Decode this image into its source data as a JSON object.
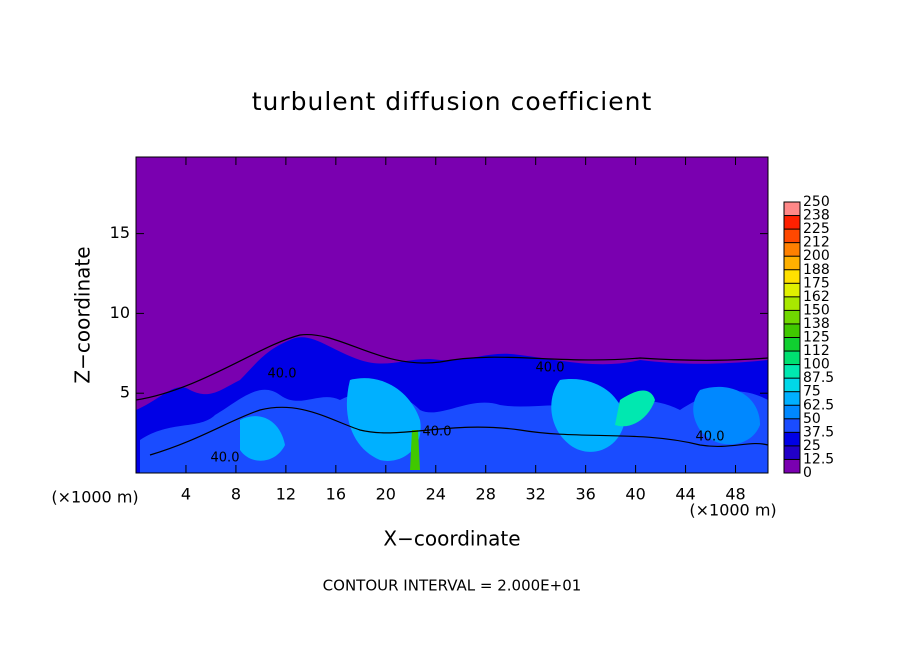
{
  "chart_data": {
    "type": "contour",
    "title": "turbulent diffusion coefficient",
    "xlabel": "X−coordinate",
    "ylabel": "Z−coordinate",
    "x_units_left": "(×1000 m)",
    "x_units_right": "(×1000 m)",
    "footer": "CONTOUR INTERVAL = 2.000E+01",
    "xlim": [
      0,
      50.6
    ],
    "xticks": [
      4,
      8,
      12,
      16,
      20,
      24,
      28,
      32,
      36,
      40,
      44,
      48
    ],
    "ylim": [
      0,
      19.8
    ],
    "yticks": [
      5,
      10,
      15
    ],
    "background_color": "#7a00b0",
    "contour_labels": [
      "40.0",
      "40.0",
      "40.0",
      "40.0",
      "40.0"
    ],
    "colorbar": {
      "levels": [
        0,
        12.5,
        25,
        37.5,
        50,
        62.5,
        75,
        87.5,
        100,
        {
          "value": 112.5,
          "label": "112"
        },
        125,
        {
          "value": 137.5,
          "label": "138"
        },
        150,
        {
          "value": 162.5,
          "label": "162"
        },
        175,
        {
          "value": 187.5,
          "label": "188"
        },
        200,
        {
          "value": 212.5,
          "label": "212"
        },
        225,
        {
          "value": 237.5,
          "label": "238"
        },
        250
      ],
      "colors": [
        "#7a00b0",
        "#2200c8",
        "#0000e6",
        "#1a4cff",
        "#0088ff",
        "#00b0ff",
        "#00d8e8",
        "#00e8b0",
        "#00e070",
        "#10d030",
        "#40c800",
        "#70d800",
        "#a8e800",
        "#e0f000",
        "#ffe000",
        "#ffb000",
        "#ff8000",
        "#ff4800",
        "#ff2000",
        "#ff8888"
      ]
    }
  }
}
